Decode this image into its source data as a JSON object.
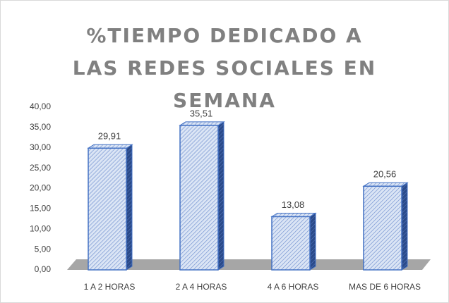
{
  "chart_data": {
    "type": "bar",
    "title": "%TIEMPO DEDICADO A LAS REDES SOCIALES EN SEMANA",
    "categories": [
      "1 A 2 HORAS",
      "2 A 4 HORAS",
      "4 A 6 HORAS",
      "MAS DE 6 HORAS"
    ],
    "values": [
      29.91,
      35.51,
      13.08,
      20.56
    ],
    "value_labels": [
      "29,91",
      "35,51",
      "13,08",
      "20,56"
    ],
    "color": "#4472c4",
    "ylim": [
      0,
      40
    ],
    "yticks": [
      {
        "value": 0,
        "label": "0,00"
      },
      {
        "value": 5,
        "label": "5,00"
      },
      {
        "value": 10,
        "label": "10,00"
      },
      {
        "value": 15,
        "label": "15,00"
      },
      {
        "value": 20,
        "label": "20,00"
      },
      {
        "value": 25,
        "label": "25,00"
      },
      {
        "value": 30,
        "label": "30,00"
      },
      {
        "value": 35,
        "label": "35,00"
      },
      {
        "value": 40,
        "label": "40,00"
      }
    ],
    "grid": false
  }
}
